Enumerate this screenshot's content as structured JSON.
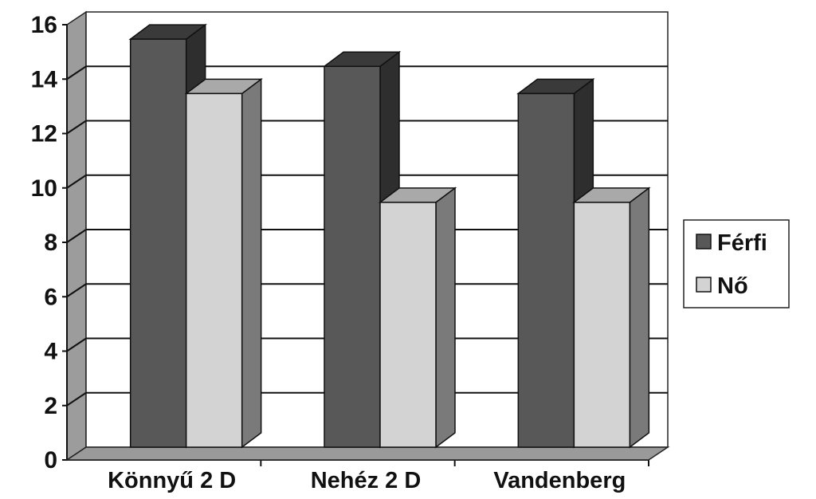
{
  "chart_data": {
    "type": "bar",
    "style": "3d-clustered-column",
    "categories": [
      "Könnyű 2 D",
      "Nehéz 2 D",
      "Vandenberg"
    ],
    "series": [
      {
        "name": "Férfi",
        "values": [
          15,
          14,
          13
        ],
        "color": "#585858",
        "top_color": "#3a3a3a",
        "side_color": "#2e2e2e"
      },
      {
        "name": "Nő",
        "values": [
          13,
          9,
          9
        ],
        "color": "#d3d3d3",
        "top_color": "#a9a9a9",
        "side_color": "#7a7a7a"
      }
    ],
    "ylim": [
      0,
      16
    ],
    "yticks": [
      "0",
      "2",
      "4",
      "6",
      "8",
      "10",
      "12",
      "14",
      "16"
    ],
    "grid": true,
    "legend": "right",
    "title": "",
    "xlabel": "",
    "ylabel": ""
  }
}
